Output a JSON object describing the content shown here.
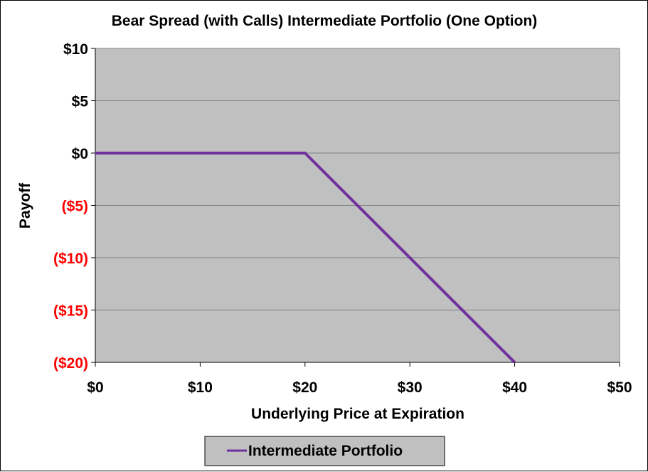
{
  "chart_data": {
    "type": "line",
    "title": "Bear Spread (with Calls) Intermediate Portfolio (One Option)",
    "xlabel": "Underlying Price at Expiration",
    "ylabel": "Payoff",
    "xlim": [
      0,
      50
    ],
    "ylim": [
      -20,
      10
    ],
    "x_ticks": [
      {
        "value": 0,
        "label": "$0"
      },
      {
        "value": 10,
        "label": "$10"
      },
      {
        "value": 20,
        "label": "$20"
      },
      {
        "value": 30,
        "label": "$30"
      },
      {
        "value": 40,
        "label": "$40"
      },
      {
        "value": 50,
        "label": "$50"
      }
    ],
    "y_ticks": [
      {
        "value": 10,
        "label": "$10"
      },
      {
        "value": 5,
        "label": "$5"
      },
      {
        "value": 0,
        "label": "$0"
      },
      {
        "value": -5,
        "label": "($5)"
      },
      {
        "value": -10,
        "label": "($10)"
      },
      {
        "value": -15,
        "label": "($15)"
      },
      {
        "value": -20,
        "label": "($20)"
      }
    ],
    "grid": "horizontal",
    "legend_position": "bottom",
    "series": [
      {
        "name": "Intermediate Portfolio",
        "color": "#7030a0",
        "x": [
          0,
          20,
          40
        ],
        "y": [
          0,
          0,
          -20
        ]
      }
    ],
    "colors": {
      "plot_background": "#c0c0c0",
      "negative_tick_label": "#ff0000",
      "positive_tick_label": "#000000",
      "gridline": "#808080"
    }
  }
}
